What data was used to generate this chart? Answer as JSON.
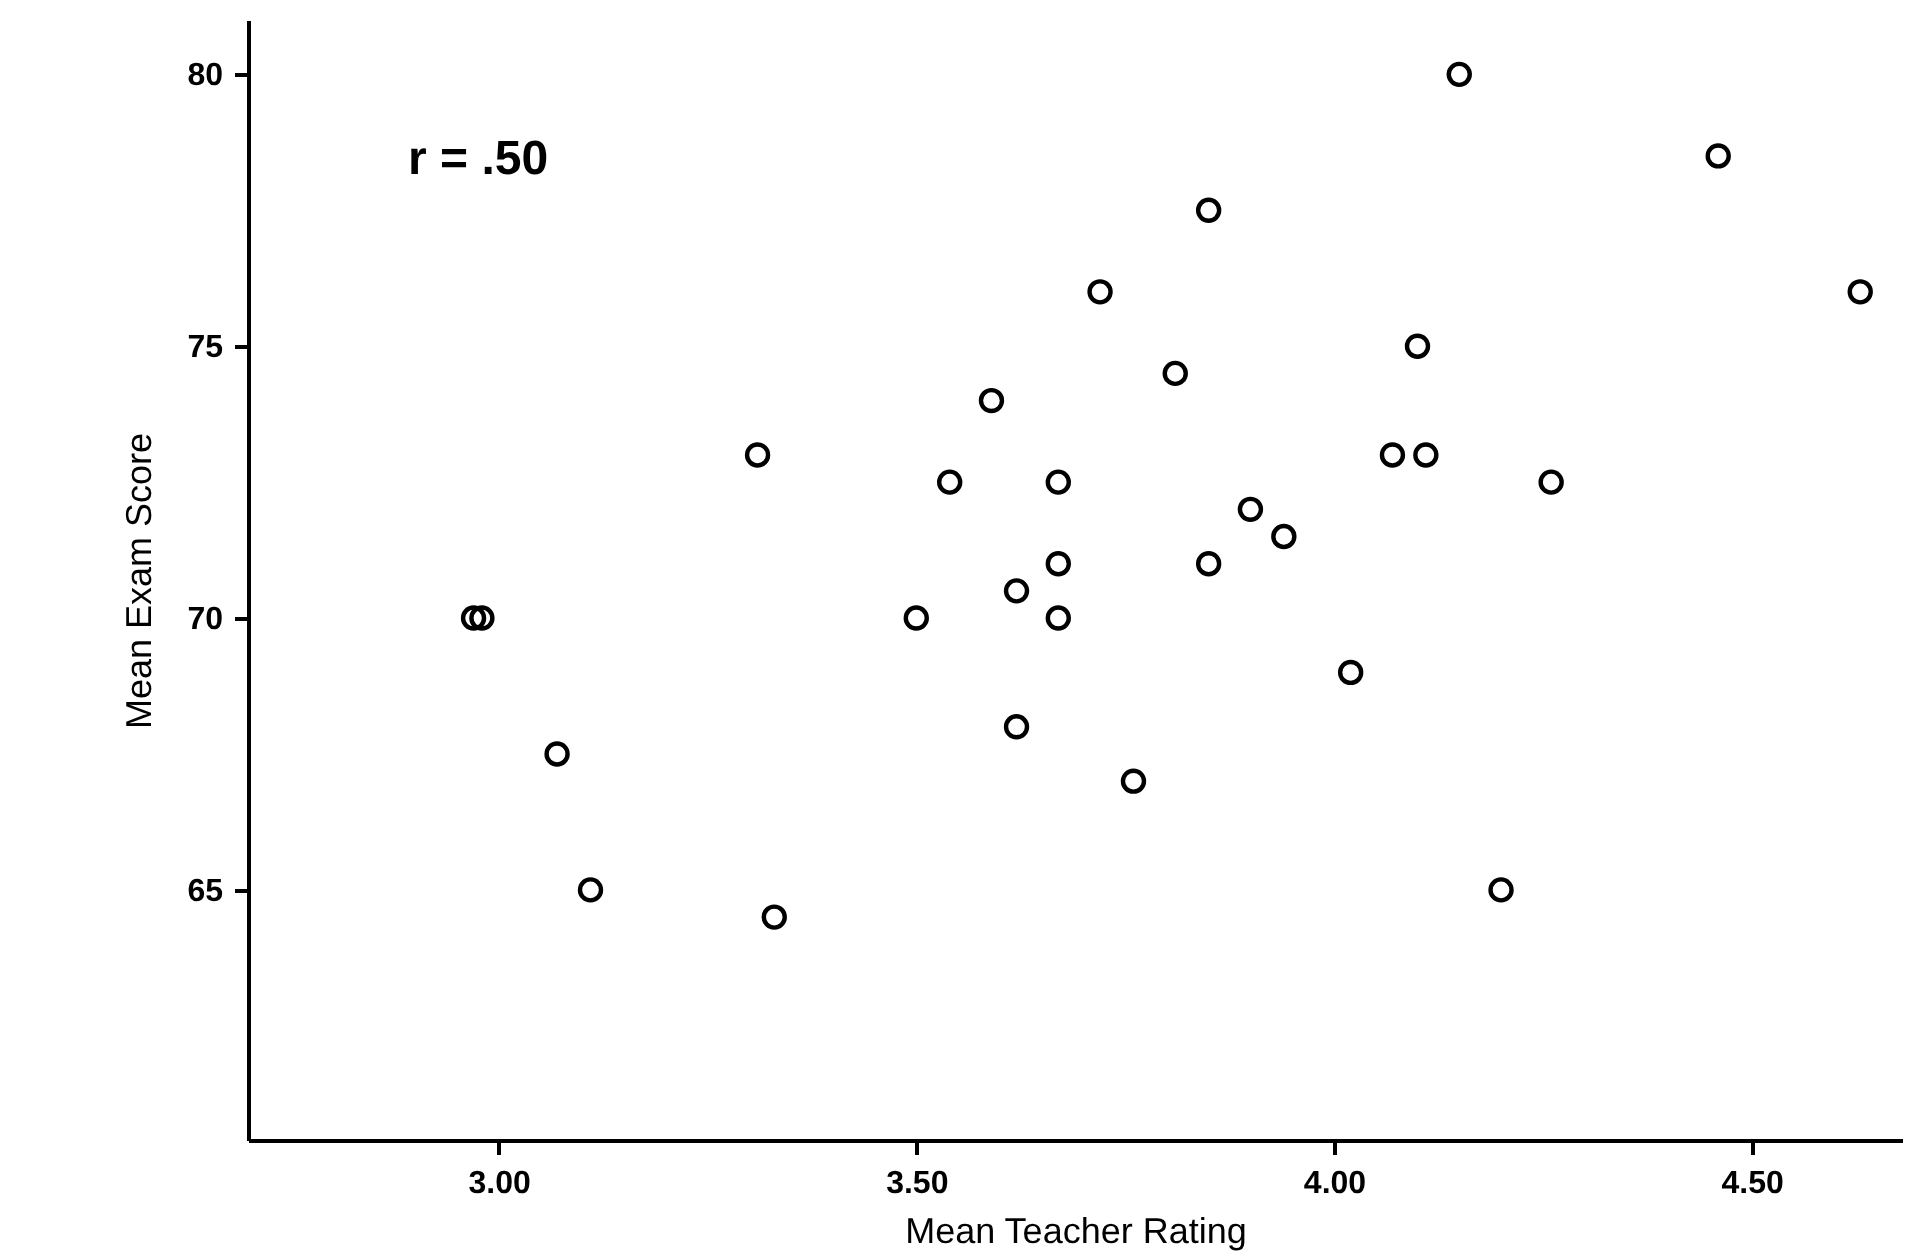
{
  "chart_data": {
    "type": "scatter",
    "xlabel": "Mean Teacher Rating",
    "ylabel": "Mean Exam Score",
    "annotations": [
      "r = .50"
    ],
    "x": [
      2.97,
      2.98,
      4.15,
      4.46,
      4.63,
      3.85,
      3.72,
      3.81,
      4.1,
      3.31,
      3.59,
      3.54,
      3.67,
      4.07,
      4.11,
      4.26,
      3.9,
      3.94,
      3.85,
      3.67,
      3.62,
      3.67,
      3.5,
      4.02,
      3.07,
      3.62,
      3.76,
      3.11,
      3.33,
      4.2
    ],
    "series": [
      {
        "color": "#000000",
        "values": [
          70,
          70,
          80,
          78.5,
          76,
          77.5,
          76,
          74.5,
          75,
          73,
          74,
          72.5,
          72.5,
          73,
          73,
          72.5,
          72,
          71.5,
          71,
          71,
          70.5,
          70,
          70,
          69,
          67.5,
          68,
          67,
          65,
          64.5,
          65
        ]
      }
    ],
    "xlim": [
      2.7,
      4.68
    ],
    "xticks": [
      {
        "value": 3,
        "label": "3.00"
      },
      {
        "value": 3.5,
        "label": "3.50"
      },
      {
        "value": 4,
        "label": "4.00"
      },
      {
        "value": 4.5,
        "label": "4.50"
      }
    ],
    "ylim": [
      60.4,
      81
    ],
    "yticks": [
      65,
      70,
      75,
      80
    ],
    "marker": "circle",
    "grid": false
  }
}
